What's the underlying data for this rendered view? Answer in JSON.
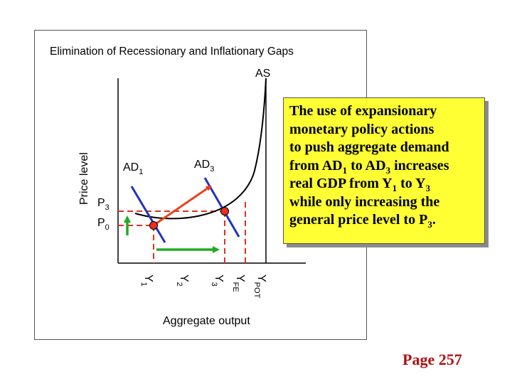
{
  "title": "Elimination of Recessionary and Inflationary Gaps",
  "axes": {
    "y_label": "Price level",
    "x_label": "Aggregate output"
  },
  "curves": {
    "as": "AS",
    "ad1_main": "AD",
    "ad1_sub": "1",
    "ad3_main": "AD",
    "ad3_sub": "3"
  },
  "price_levels": [
    {
      "main": "P",
      "sub": "3"
    },
    {
      "main": "P",
      "sub": "0"
    }
  ],
  "output_levels": [
    {
      "main": "Y",
      "sub": "1"
    },
    {
      "main": "Y",
      "sub": "2"
    },
    {
      "main": "Y",
      "sub": "3"
    },
    {
      "main": "Y",
      "sub": "FE"
    },
    {
      "main": "Y",
      "sub": "POT"
    }
  ],
  "callout": {
    "line1": "The use of expansionary",
    "line2": "monetary policy actions",
    "line3": "to push aggregate demand",
    "line4_a": "from AD",
    "line4_sub1": "1",
    "line4_b": " to AD",
    "line4_sub2": "3",
    "line4_c": " increases",
    "line5_a": "real GDP from Y",
    "line5_sub1": "1",
    "line5_b": " to Y",
    "line5_sub2": "3",
    "line6": "while only increasing the",
    "line7_a": "general price level to P",
    "line7_sub": "3",
    "line7_b": "."
  },
  "page_number": "Page 257",
  "colors": {
    "shift_arrow": "#e8401c",
    "output_arrow": "#22aa22",
    "ad_curve": "#2233bb",
    "guide_dash": "#e03020",
    "point": "#e83020",
    "callout_bg": "#ffff33",
    "page_text": "#b01010"
  }
}
